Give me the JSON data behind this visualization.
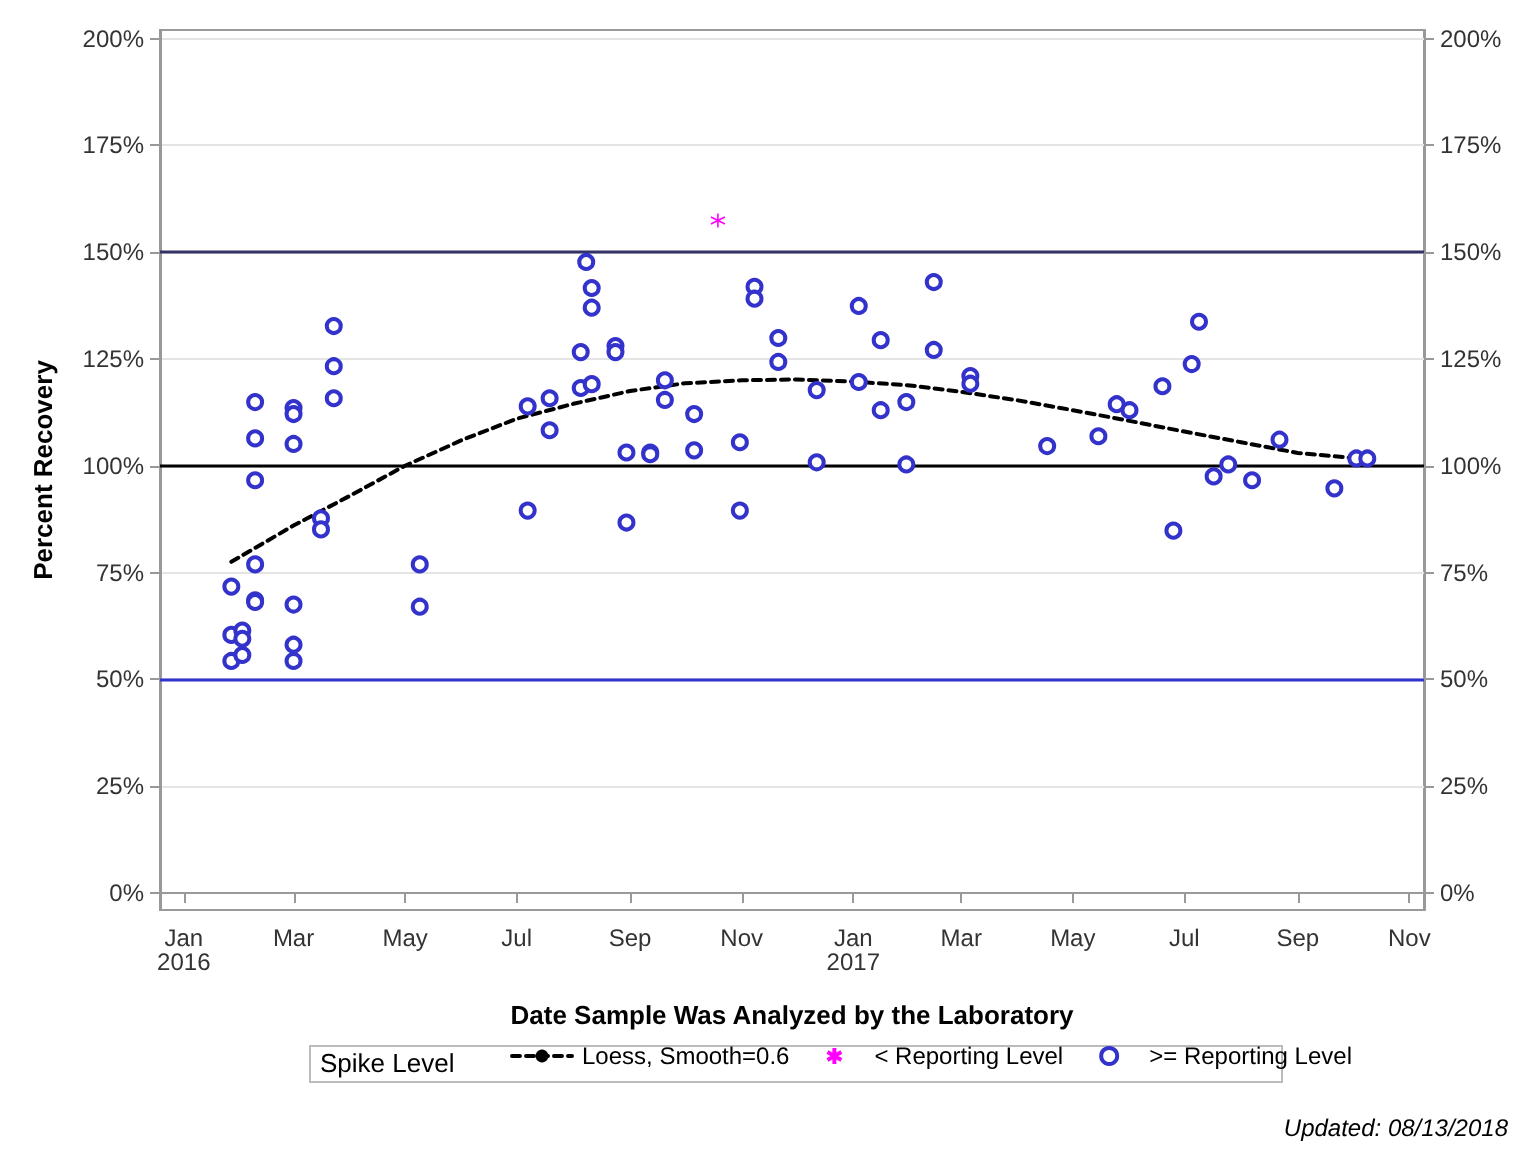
{
  "chart_data": {
    "type": "scatter",
    "xlabel": "Date Sample Was Analyzed by the Laboratory",
    "ylabel": "Percent Recovery",
    "legend_title": "Spike Level",
    "annotations": [
      "Updated: 08/13/2018"
    ],
    "xlim": [
      "2015-12-19",
      "2017-11-09"
    ],
    "xticks": [
      {
        "value": "2016-01-01",
        "label": "Jan\n2016"
      },
      {
        "value": "2016-03-01",
        "label": "Mar"
      },
      {
        "value": "2016-05-01",
        "label": "May"
      },
      {
        "value": "2016-07-01",
        "label": "Jul"
      },
      {
        "value": "2016-09-01",
        "label": "Sep"
      },
      {
        "value": "2016-11-01",
        "label": "Nov"
      },
      {
        "value": "2017-01-01",
        "label": "Jan\n2017"
      },
      {
        "value": "2017-03-01",
        "label": "Mar"
      },
      {
        "value": "2017-05-01",
        "label": "May"
      },
      {
        "value": "2017-07-01",
        "label": "Jul"
      },
      {
        "value": "2017-09-01",
        "label": "Sep"
      },
      {
        "value": "2017-11-01",
        "label": "Nov"
      }
    ],
    "ylim": [
      -4,
      202
    ],
    "yticks": [
      {
        "value": 0,
        "label": "0%"
      },
      {
        "value": 25,
        "label": "25%"
      },
      {
        "value": 50,
        "label": "50%"
      },
      {
        "value": 75,
        "label": "75%"
      },
      {
        "value": 100,
        "label": "100%"
      },
      {
        "value": 125,
        "label": "125%"
      },
      {
        "value": 150,
        "label": "150%"
      },
      {
        "value": 175,
        "label": "175%"
      },
      {
        "value": 200,
        "label": "200%"
      }
    ],
    "y2lim": [
      -4,
      202
    ],
    "y2ticks": [
      {
        "value": 0,
        "label": "0%"
      },
      {
        "value": 25,
        "label": "25%"
      },
      {
        "value": 50,
        "label": "50%"
      },
      {
        "value": 75,
        "label": "75%"
      },
      {
        "value": 100,
        "label": "100%"
      },
      {
        "value": 125,
        "label": "125%"
      },
      {
        "value": 150,
        "label": "150%"
      },
      {
        "value": 175,
        "label": "175%"
      },
      {
        "value": 200,
        "label": "200%"
      }
    ],
    "grid": "y",
    "legend": "bottom",
    "ref_lines": [
      {
        "axis": "y",
        "value": 150,
        "color": "#333366",
        "line_style": "solid"
      },
      {
        "axis": "y",
        "value": 100,
        "color": "#000000",
        "line_style": "solid"
      },
      {
        "axis": "y",
        "value": 50,
        "color": "#3333cc",
        "line_style": "solid"
      }
    ],
    "series": [
      {
        "name": "Loess, Smooth=0.6",
        "type": "line",
        "marker": "none",
        "line_style": "dashed",
        "color": "#000000",
        "x": [
          "2016-01-27",
          "2016-03-01",
          "2016-04-01",
          "2016-05-01",
          "2016-06-01",
          "2016-07-01",
          "2016-08-01",
          "2016-09-01",
          "2016-10-01",
          "2016-11-01",
          "2016-12-01",
          "2017-01-01",
          "2017-02-01",
          "2017-03-01",
          "2017-04-01",
          "2017-05-01",
          "2017-06-01",
          "2017-07-01",
          "2017-08-01",
          "2017-09-01",
          "2017-10-09"
        ],
        "values": [
          77.5,
          86,
          93,
          100,
          106,
          111,
          114.5,
          117.5,
          119.3,
          120,
          120.2,
          119.7,
          118.8,
          117.3,
          115.3,
          113,
          110.5,
          108,
          105.5,
          103,
          101.5
        ]
      },
      {
        "name": "< Reporting Level",
        "marker": "cross",
        "color": "#ff00ff",
        "x": [
          "2016-10-19"
        ],
        "values": [
          157.4
        ]
      },
      {
        "name": ">= Reporting Level",
        "marker": "circle",
        "color": "#3333cc",
        "x": [
          "2016-01-27",
          "2016-01-27",
          "2016-01-27",
          "2016-02-02",
          "2016-02-02",
          "2016-02-02",
          "2016-02-09",
          "2016-02-09",
          "2016-02-09",
          "2016-02-09",
          "2016-02-09",
          "2016-02-09",
          "2016-03-01",
          "2016-03-01",
          "2016-03-01",
          "2016-03-01",
          "2016-03-01",
          "2016-03-01",
          "2016-03-16",
          "2016-03-16",
          "2016-03-23",
          "2016-03-23",
          "2016-03-23",
          "2016-05-09",
          "2016-05-09",
          "2016-07-07",
          "2016-07-07",
          "2016-07-19",
          "2016-07-19",
          "2016-08-05",
          "2016-08-05",
          "2016-08-08",
          "2016-08-11",
          "2016-08-11",
          "2016-08-11",
          "2016-08-24",
          "2016-08-24",
          "2016-08-30",
          "2016-08-30",
          "2016-09-12",
          "2016-09-12",
          "2016-09-20",
          "2016-09-20",
          "2016-10-06",
          "2016-10-06",
          "2016-10-31",
          "2016-10-31",
          "2016-11-08",
          "2016-11-08",
          "2016-11-21",
          "2016-11-21",
          "2016-12-12",
          "2016-12-12",
          "2017-01-04",
          "2017-01-04",
          "2017-01-16",
          "2017-01-16",
          "2017-01-30",
          "2017-01-30",
          "2017-02-14",
          "2017-02-14",
          "2017-03-06",
          "2017-03-06",
          "2017-04-17",
          "2017-05-15",
          "2017-05-25",
          "2017-06-01",
          "2017-06-19",
          "2017-06-25",
          "2017-07-05",
          "2017-07-09",
          "2017-07-17",
          "2017-07-25",
          "2017-08-07",
          "2017-08-22",
          "2017-09-21",
          "2017-10-03",
          "2017-10-09"
        ],
        "values": [
          71.7,
          60.4,
          54.3,
          61.4,
          59.5,
          55.7,
          114.9,
          106.4,
          96.6,
          76.9,
          68.5,
          68.1,
          113.5,
          112.1,
          105.1,
          67.5,
          58.1,
          54.3,
          87.7,
          85.1,
          132.7,
          123.3,
          115.8,
          76.9,
          67.0,
          113.9,
          89.5,
          115.8,
          108.3,
          126.6,
          118.2,
          147.7,
          141.6,
          137.0,
          119.1,
          128.0,
          126.6,
          103.1,
          86.7,
          103.1,
          102.7,
          120.0,
          115.4,
          112.1,
          103.6,
          105.5,
          89.5,
          141.9,
          139.1,
          129.9,
          124.3,
          117.7,
          100.8,
          137.4,
          119.6,
          129.4,
          113.0,
          114.9,
          100.3,
          143.0,
          127.1,
          121.0,
          119.2,
          104.6,
          106.9,
          114.4,
          113.0,
          118.6,
          84.8,
          123.8,
          133.7,
          97.5,
          100.3,
          96.6,
          106.1,
          94.7,
          101.7,
          101.7
        ]
      }
    ]
  }
}
